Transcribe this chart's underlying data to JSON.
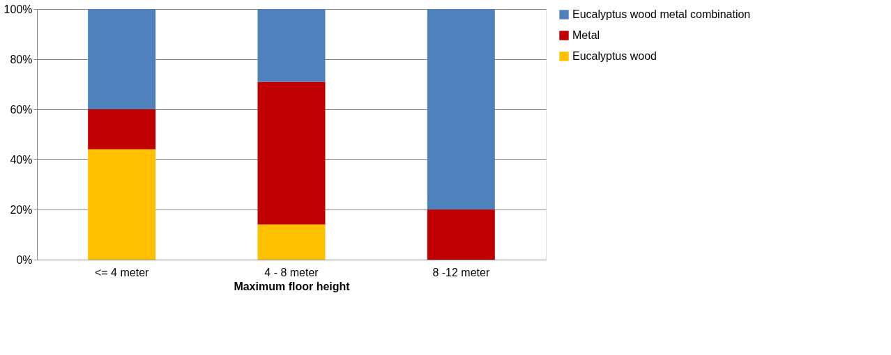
{
  "chart_data": {
    "type": "bar",
    "stacked": true,
    "xlabel": "Maximum floor height",
    "categories": [
      "<= 4 meter",
      "4 - 8 meter",
      "8 -12 meter"
    ],
    "series": [
      {
        "name": "Eucalyptus wood",
        "color": "#ffc000",
        "values": [
          44,
          14,
          0
        ]
      },
      {
        "name": "Metal",
        "color": "#c00000",
        "values": [
          16,
          57,
          20
        ]
      },
      {
        "name": "Eucalyptus wood metal combination",
        "color": "#4f81bd",
        "values": [
          40,
          29,
          80
        ]
      }
    ],
    "ylim": [
      0,
      100
    ],
    "yticks": [
      {
        "value": 0,
        "label": "0%"
      },
      {
        "value": 20,
        "label": "20%"
      },
      {
        "value": 40,
        "label": "40%"
      },
      {
        "value": 60,
        "label": "60%"
      },
      {
        "value": 80,
        "label": "80%"
      },
      {
        "value": 100,
        "label": "100%"
      }
    ],
    "grid": "y",
    "legend": "right"
  }
}
